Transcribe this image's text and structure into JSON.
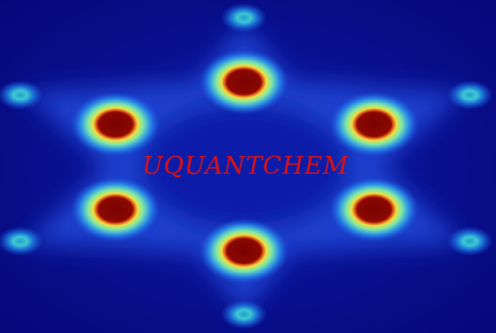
{
  "title": "UQUANTCHEM"
}
